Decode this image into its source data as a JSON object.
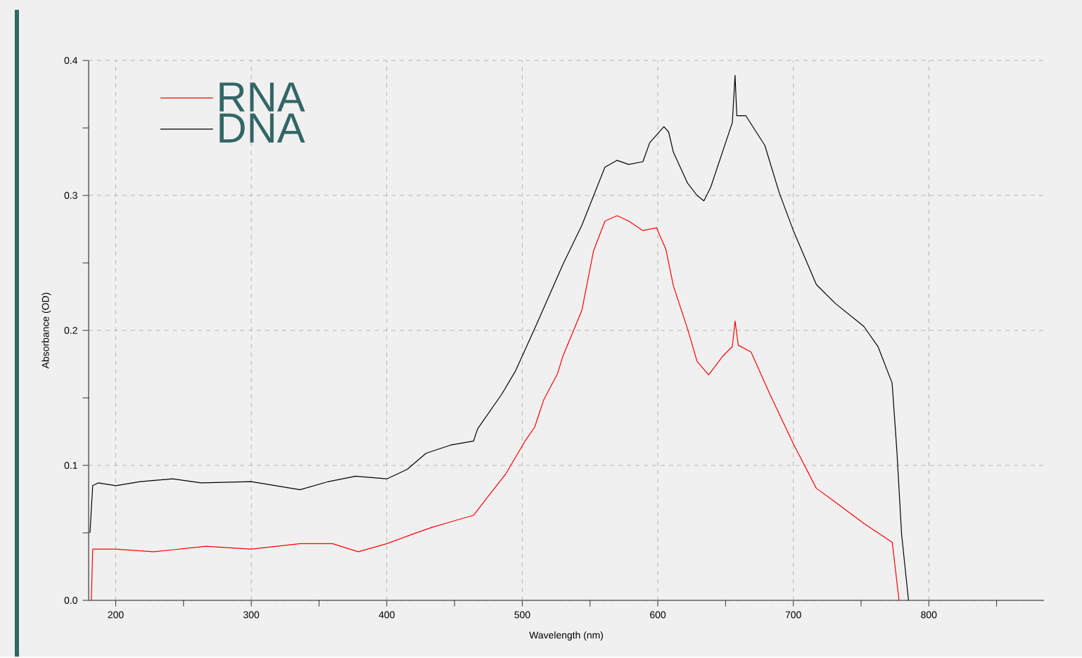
{
  "chart_data": {
    "type": "line",
    "xlabel": "Wavelength (nm)",
    "ylabel": "Absorbance (OD)",
    "xlim": [
      180,
      885
    ],
    "ylim": [
      0,
      0.4
    ],
    "xticks": [
      200,
      {
        "value": 250,
        "label": null
      },
      300,
      {
        "value": 350,
        "label": null
      },
      400,
      {
        "value": 450,
        "label": null
      },
      500,
      {
        "value": 550,
        "label": null
      },
      600,
      {
        "value": 650,
        "label": null
      },
      700,
      {
        "value": 750,
        "label": null
      },
      800,
      {
        "value": 850,
        "label": null
      }
    ],
    "yticks": [
      {
        "value": 0,
        "label": "0.0"
      },
      {
        "value": 0.05,
        "label": null
      },
      0.1,
      {
        "value": 0.15,
        "label": null
      },
      0.2,
      {
        "value": 0.25,
        "label": null
      },
      0.3,
      {
        "value": 0.35,
        "label": null
      },
      0.4
    ],
    "grid": true,
    "legend": "top left",
    "marker": "none",
    "line_style": "solid",
    "series": [
      {
        "name": "RNA",
        "color": "#ff0000",
        "x": [
          182,
          183,
          200,
          228,
          266.5,
          300,
          336,
          360,
          379,
          400,
          419,
          433,
          450,
          464,
          474,
          488,
          502,
          509,
          516,
          526,
          530,
          544,
          552.6,
          561,
          570,
          578.5,
          589,
          599,
          606,
          611.5,
          622,
          629,
          637.5,
          648,
          655,
          657,
          659.4,
          668.8,
          682.6,
          700,
          717,
          728,
          752,
          773,
          778
        ],
        "values": [
          0,
          0.038,
          0.038,
          0.036,
          0.04,
          0.038,
          0.042,
          0.042,
          0.036,
          0.042,
          0.049,
          0.054,
          0.059,
          0.063,
          0.076,
          0.094,
          0.118,
          0.128,
          0.149,
          0.168,
          0.181,
          0.215,
          0.259,
          0.281,
          0.285,
          0.281,
          0.274,
          0.276,
          0.26,
          0.233,
          0.201,
          0.177,
          0.167,
          0.181,
          0.188,
          0.207,
          0.189,
          0.184,
          0.153,
          0.116,
          0.083,
          0.075,
          0.057,
          0.043,
          0
        ]
      },
      {
        "name": "DNA",
        "color": "#000000",
        "x": [
          181,
          183,
          187,
          200,
          218,
          242,
          263,
          300,
          336,
          357,
          377,
          400,
          415,
          429,
          447,
          464,
          467,
          485,
          495,
          509,
          530,
          544,
          561,
          570,
          578.5,
          589,
          594,
          604.5,
          608,
          611.5,
          622,
          629,
          634,
          639,
          648,
          655,
          657,
          658.3,
          665,
          679,
          689.6,
          700,
          717,
          731,
          752,
          762.5,
          772.9,
          776.4,
          779.9,
          785
        ],
        "values": [
          0.05,
          0.085,
          0.087,
          0.085,
          0.088,
          0.09,
          0.087,
          0.088,
          0.082,
          0.088,
          0.092,
          0.09,
          0.097,
          0.109,
          0.115,
          0.118,
          0.127,
          0.153,
          0.17,
          0.201,
          0.249,
          0.278,
          0.321,
          0.326,
          0.323,
          0.325,
          0.339,
          0.351,
          0.347,
          0.332,
          0.309,
          0.3,
          0.296,
          0.306,
          0.333,
          0.354,
          0.389,
          0.359,
          0.359,
          0.337,
          0.302,
          0.274,
          0.234,
          0.22,
          0.203,
          0.188,
          0.161,
          0.111,
          0.049,
          0
        ]
      }
    ]
  }
}
